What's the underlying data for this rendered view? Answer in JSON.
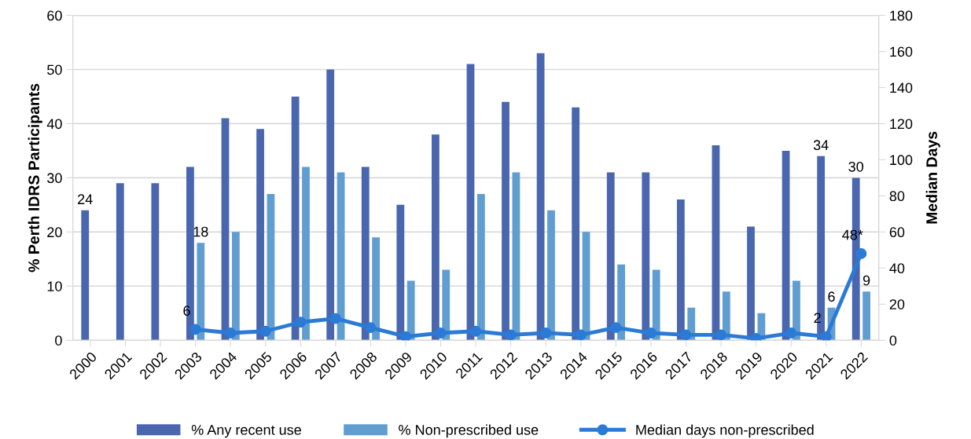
{
  "chart_data": {
    "type": "bar",
    "ylabel": "% Perth IDRS Participants",
    "y2label": "Median Days",
    "categories": [
      "2000",
      "2001",
      "2002",
      "2003",
      "2004",
      "2005",
      "2006",
      "2007",
      "2008",
      "2009",
      "2010",
      "2011",
      "2012",
      "2013",
      "2014",
      "2015",
      "2016",
      "2017",
      "2018",
      "2019",
      "2020",
      "2021",
      "2022"
    ],
    "series": [
      {
        "name": "% Any recent use",
        "color": "#4a66ae",
        "values": [
          24,
          29,
          29,
          32,
          41,
          39,
          45,
          50,
          32,
          25,
          38,
          51,
          44,
          53,
          43,
          31,
          31,
          26,
          36,
          21,
          35,
          34,
          30
        ],
        "value_labels": [
          "24",
          null,
          null,
          null,
          null,
          null,
          null,
          null,
          null,
          null,
          null,
          null,
          null,
          null,
          null,
          null,
          null,
          null,
          null,
          null,
          null,
          "34",
          "30"
        ]
      },
      {
        "name": "% Non-prescribed use",
        "color": "#609ed2",
        "values": [
          null,
          null,
          null,
          18,
          20,
          27,
          32,
          31,
          19,
          11,
          13,
          27,
          31,
          24,
          20,
          14,
          13,
          6,
          9,
          5,
          11,
          6,
          9
        ],
        "value_labels": [
          null,
          null,
          null,
          "18",
          null,
          null,
          null,
          null,
          null,
          null,
          null,
          null,
          null,
          null,
          null,
          null,
          null,
          null,
          null,
          null,
          null,
          "6",
          "9"
        ]
      },
      {
        "name": "Median days non-prescribed",
        "type": "line",
        "axis": "y2",
        "marker": "circle",
        "color": "#2b7bd6",
        "values": [
          null,
          null,
          null,
          6,
          4,
          5,
          10,
          12,
          7,
          2,
          4,
          5,
          3,
          4,
          3,
          7,
          4,
          3,
          3,
          1,
          4,
          2,
          48
        ],
        "value_labels": [
          null,
          null,
          null,
          "6",
          null,
          null,
          null,
          null,
          null,
          null,
          null,
          null,
          null,
          null,
          null,
          null,
          null,
          null,
          null,
          null,
          null,
          "2",
          "48*"
        ]
      }
    ],
    "ylim": [
      0,
      60
    ],
    "yticks": [
      0,
      10,
      20,
      30,
      40,
      50,
      60
    ],
    "y2lim": [
      0,
      180
    ],
    "y2ticks": [
      0,
      20,
      40,
      60,
      80,
      100,
      120,
      140,
      160,
      180
    ],
    "grid": "y",
    "legend": "bottom"
  }
}
